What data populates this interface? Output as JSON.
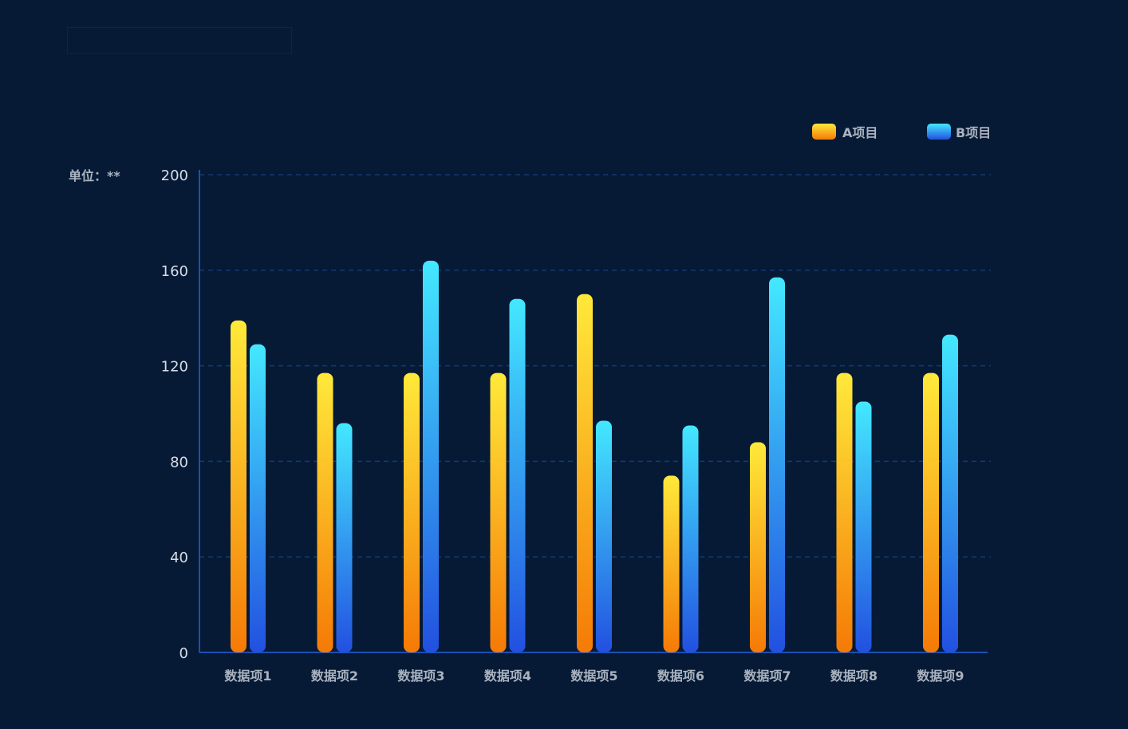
{
  "chart_data": {
    "type": "bar",
    "unit_label": "单位：**",
    "categories": [
      "数据项1",
      "数据项2",
      "数据项3",
      "数据项4",
      "数据项5",
      "数据项6",
      "数据项7",
      "数据项8",
      "数据项9"
    ],
    "series": [
      {
        "name": "A项目",
        "values": [
          139,
          117,
          117,
          117,
          150,
          74,
          88,
          117,
          117
        ],
        "gradient": [
          "#ffe93a",
          "#f57a06"
        ]
      },
      {
        "name": "B项目",
        "values": [
          129,
          96,
          164,
          148,
          97,
          95,
          157,
          105,
          133
        ],
        "gradient": [
          "#44e8ff",
          "#2250e0"
        ]
      }
    ],
    "y_ticks": [
      0,
      40,
      80,
      120,
      160,
      200
    ],
    "ylim": [
      0,
      200
    ],
    "grid": true,
    "legend_position": "top-right",
    "colors": {
      "background": "#061a36",
      "axis": "#1b4fb0",
      "grid": "#123a72"
    }
  }
}
